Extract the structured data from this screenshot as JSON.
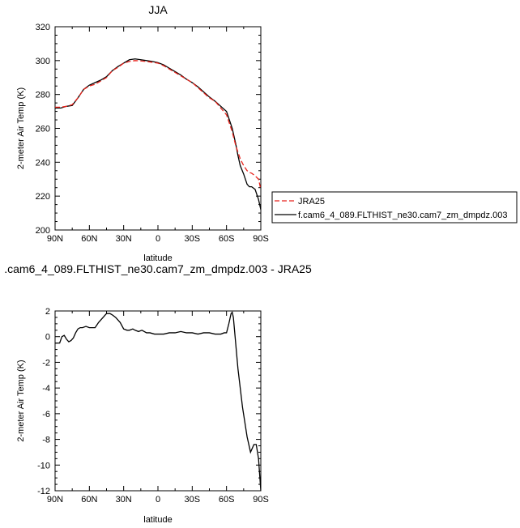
{
  "chart_data": [
    {
      "type": "line",
      "title": "JJA",
      "xlabel": "latitude",
      "ylabel": "2-meter Air Temp (K)",
      "xlim": [
        90,
        -90
      ],
      "ylim": [
        200,
        320
      ],
      "xticks": [
        90,
        60,
        30,
        0,
        -30,
        -60,
        -90
      ],
      "xticklabels": [
        "90N",
        "60N",
        "30N",
        "0",
        "30S",
        "60S",
        "90S"
      ],
      "yticks": [
        200,
        220,
        240,
        260,
        280,
        300,
        320
      ],
      "legend_position": "right",
      "series": [
        {
          "name": "JRA25",
          "color": "#e8231c",
          "dash": "dashed",
          "x": [
            90,
            85,
            80,
            75,
            70,
            65,
            60,
            55,
            50,
            45,
            40,
            35,
            30,
            25,
            20,
            15,
            10,
            5,
            0,
            -5,
            -10,
            -15,
            -20,
            -25,
            -30,
            -35,
            -40,
            -45,
            -50,
            -55,
            -60,
            -62,
            -65,
            -68,
            -70,
            -72,
            -75,
            -78,
            -80,
            -82,
            -85,
            -88,
            -90
          ],
          "y": [
            272.5,
            272.5,
            273,
            274,
            278,
            283,
            285,
            286,
            288,
            290,
            294,
            296,
            298.5,
            299.5,
            300,
            299.8,
            299.5,
            299,
            298.5,
            297,
            295,
            293,
            291,
            289,
            287,
            284,
            281,
            278,
            276,
            272,
            268,
            264,
            258,
            250,
            246,
            242,
            238,
            235,
            234,
            233.5,
            232,
            230,
            224
          ]
        },
        {
          "name": "f.cam6_4_089.FLTHIST_ne30.cam7_zm_dmpdz.003",
          "color": "#000000",
          "dash": "solid",
          "x": [
            90,
            85,
            80,
            75,
            70,
            65,
            60,
            55,
            50,
            45,
            40,
            35,
            30,
            25,
            20,
            15,
            10,
            5,
            0,
            -5,
            -10,
            -15,
            -20,
            -25,
            -30,
            -35,
            -40,
            -45,
            -50,
            -55,
            -60,
            -62,
            -65,
            -68,
            -70,
            -72,
            -75,
            -78,
            -80,
            -82,
            -85,
            -88,
            -90
          ],
          "y": [
            272,
            272,
            273,
            273.5,
            278,
            283,
            285.5,
            287,
            288.5,
            290.5,
            294,
            296.5,
            298.5,
            300.5,
            301,
            300.5,
            300,
            299.5,
            298.8,
            297.5,
            295.5,
            293.5,
            291.5,
            289,
            287,
            284.5,
            281.5,
            278.5,
            276,
            273,
            270,
            266,
            260,
            251,
            244,
            238,
            233,
            227,
            225.5,
            225.5,
            224,
            218,
            212
          ]
        }
      ]
    },
    {
      "type": "line",
      "title": ".cam6_4_089.FLTHIST_ne30.cam7_zm_dmpdz.003 - JRA25",
      "xlabel": "latitude",
      "ylabel": "2-meter Air Temp (K)",
      "xlim": [
        90,
        -90
      ],
      "ylim": [
        -12,
        2
      ],
      "xticks": [
        90,
        60,
        30,
        0,
        -30,
        -60,
        -90
      ],
      "xticklabels": [
        "90N",
        "60N",
        "30N",
        "0",
        "30S",
        "60S",
        "90S"
      ],
      "yticks": [
        -12,
        -10,
        -8,
        -6,
        -4,
        -2,
        0,
        2
      ],
      "series": [
        {
          "color": "#000000",
          "dash": "solid",
          "x": [
            90,
            86,
            84,
            82,
            80,
            78,
            76,
            74,
            72,
            70,
            68,
            66,
            63,
            60,
            55,
            52,
            48,
            45,
            42,
            40,
            37,
            33,
            30,
            27,
            25,
            22,
            20,
            17,
            14,
            10,
            7,
            3,
            0,
            -5,
            -10,
            -15,
            -20,
            -25,
            -30,
            -35,
            -40,
            -45,
            -50,
            -55,
            -58,
            -60,
            -62,
            -64,
            -65,
            -66,
            -70,
            -74,
            -78,
            -81,
            -84,
            -86,
            -88,
            -90
          ],
          "y": [
            -0.5,
            -0.5,
            0,
            0.1,
            -0.2,
            -0.4,
            -0.3,
            -0.1,
            0.3,
            0.6,
            0.7,
            0.7,
            0.8,
            0.7,
            0.7,
            1.1,
            1.5,
            1.8,
            1.8,
            1.7,
            1.5,
            1.1,
            0.6,
            0.5,
            0.5,
            0.6,
            0.5,
            0.4,
            0.5,
            0.3,
            0.3,
            0.2,
            0.2,
            0.2,
            0.3,
            0.3,
            0.4,
            0.3,
            0.3,
            0.2,
            0.3,
            0.3,
            0.2,
            0.2,
            0.3,
            0.3,
            1.0,
            1.8,
            1.9,
            1.5,
            -2.5,
            -5.5,
            -7.8,
            -9.0,
            -8.4,
            -8.4,
            -9.5,
            -12
          ]
        }
      ]
    }
  ]
}
